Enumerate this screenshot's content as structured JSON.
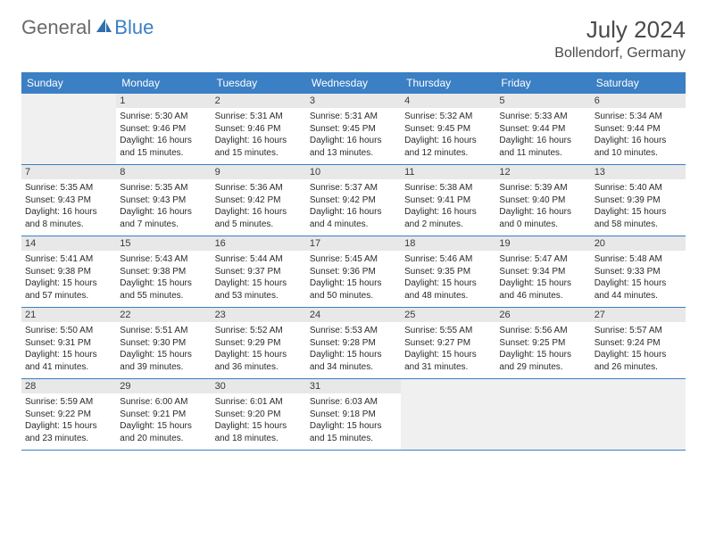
{
  "logo": {
    "general": "General",
    "blue": "Blue"
  },
  "title": "July 2024",
  "location": "Bollendorf, Germany",
  "colors": {
    "header_bg": "#3b7fc4",
    "header_text": "#ffffff",
    "daynum_bg": "#e8e8e8",
    "border": "#3b7fc4",
    "body_text": "#2a2a2a",
    "title_text": "#4a4a4a",
    "logo_gray": "#6a6a6a",
    "logo_blue": "#3b7fc4"
  },
  "typography": {
    "title_fontsize": 26,
    "location_fontsize": 16,
    "header_fontsize": 12,
    "cell_fontsize": 10
  },
  "weekdays": [
    "Sunday",
    "Monday",
    "Tuesday",
    "Wednesday",
    "Thursday",
    "Friday",
    "Saturday"
  ],
  "weeks": [
    [
      null,
      {
        "day": "1",
        "sunrise": "Sunrise: 5:30 AM",
        "sunset": "Sunset: 9:46 PM",
        "d1": "Daylight: 16 hours",
        "d2": "and 15 minutes."
      },
      {
        "day": "2",
        "sunrise": "Sunrise: 5:31 AM",
        "sunset": "Sunset: 9:46 PM",
        "d1": "Daylight: 16 hours",
        "d2": "and 15 minutes."
      },
      {
        "day": "3",
        "sunrise": "Sunrise: 5:31 AM",
        "sunset": "Sunset: 9:45 PM",
        "d1": "Daylight: 16 hours",
        "d2": "and 13 minutes."
      },
      {
        "day": "4",
        "sunrise": "Sunrise: 5:32 AM",
        "sunset": "Sunset: 9:45 PM",
        "d1": "Daylight: 16 hours",
        "d2": "and 12 minutes."
      },
      {
        "day": "5",
        "sunrise": "Sunrise: 5:33 AM",
        "sunset": "Sunset: 9:44 PM",
        "d1": "Daylight: 16 hours",
        "d2": "and 11 minutes."
      },
      {
        "day": "6",
        "sunrise": "Sunrise: 5:34 AM",
        "sunset": "Sunset: 9:44 PM",
        "d1": "Daylight: 16 hours",
        "d2": "and 10 minutes."
      }
    ],
    [
      {
        "day": "7",
        "sunrise": "Sunrise: 5:35 AM",
        "sunset": "Sunset: 9:43 PM",
        "d1": "Daylight: 16 hours",
        "d2": "and 8 minutes."
      },
      {
        "day": "8",
        "sunrise": "Sunrise: 5:35 AM",
        "sunset": "Sunset: 9:43 PM",
        "d1": "Daylight: 16 hours",
        "d2": "and 7 minutes."
      },
      {
        "day": "9",
        "sunrise": "Sunrise: 5:36 AM",
        "sunset": "Sunset: 9:42 PM",
        "d1": "Daylight: 16 hours",
        "d2": "and 5 minutes."
      },
      {
        "day": "10",
        "sunrise": "Sunrise: 5:37 AM",
        "sunset": "Sunset: 9:42 PM",
        "d1": "Daylight: 16 hours",
        "d2": "and 4 minutes."
      },
      {
        "day": "11",
        "sunrise": "Sunrise: 5:38 AM",
        "sunset": "Sunset: 9:41 PM",
        "d1": "Daylight: 16 hours",
        "d2": "and 2 minutes."
      },
      {
        "day": "12",
        "sunrise": "Sunrise: 5:39 AM",
        "sunset": "Sunset: 9:40 PM",
        "d1": "Daylight: 16 hours",
        "d2": "and 0 minutes."
      },
      {
        "day": "13",
        "sunrise": "Sunrise: 5:40 AM",
        "sunset": "Sunset: 9:39 PM",
        "d1": "Daylight: 15 hours",
        "d2": "and 58 minutes."
      }
    ],
    [
      {
        "day": "14",
        "sunrise": "Sunrise: 5:41 AM",
        "sunset": "Sunset: 9:38 PM",
        "d1": "Daylight: 15 hours",
        "d2": "and 57 minutes."
      },
      {
        "day": "15",
        "sunrise": "Sunrise: 5:43 AM",
        "sunset": "Sunset: 9:38 PM",
        "d1": "Daylight: 15 hours",
        "d2": "and 55 minutes."
      },
      {
        "day": "16",
        "sunrise": "Sunrise: 5:44 AM",
        "sunset": "Sunset: 9:37 PM",
        "d1": "Daylight: 15 hours",
        "d2": "and 53 minutes."
      },
      {
        "day": "17",
        "sunrise": "Sunrise: 5:45 AM",
        "sunset": "Sunset: 9:36 PM",
        "d1": "Daylight: 15 hours",
        "d2": "and 50 minutes."
      },
      {
        "day": "18",
        "sunrise": "Sunrise: 5:46 AM",
        "sunset": "Sunset: 9:35 PM",
        "d1": "Daylight: 15 hours",
        "d2": "and 48 minutes."
      },
      {
        "day": "19",
        "sunrise": "Sunrise: 5:47 AM",
        "sunset": "Sunset: 9:34 PM",
        "d1": "Daylight: 15 hours",
        "d2": "and 46 minutes."
      },
      {
        "day": "20",
        "sunrise": "Sunrise: 5:48 AM",
        "sunset": "Sunset: 9:33 PM",
        "d1": "Daylight: 15 hours",
        "d2": "and 44 minutes."
      }
    ],
    [
      {
        "day": "21",
        "sunrise": "Sunrise: 5:50 AM",
        "sunset": "Sunset: 9:31 PM",
        "d1": "Daylight: 15 hours",
        "d2": "and 41 minutes."
      },
      {
        "day": "22",
        "sunrise": "Sunrise: 5:51 AM",
        "sunset": "Sunset: 9:30 PM",
        "d1": "Daylight: 15 hours",
        "d2": "and 39 minutes."
      },
      {
        "day": "23",
        "sunrise": "Sunrise: 5:52 AM",
        "sunset": "Sunset: 9:29 PM",
        "d1": "Daylight: 15 hours",
        "d2": "and 36 minutes."
      },
      {
        "day": "24",
        "sunrise": "Sunrise: 5:53 AM",
        "sunset": "Sunset: 9:28 PM",
        "d1": "Daylight: 15 hours",
        "d2": "and 34 minutes."
      },
      {
        "day": "25",
        "sunrise": "Sunrise: 5:55 AM",
        "sunset": "Sunset: 9:27 PM",
        "d1": "Daylight: 15 hours",
        "d2": "and 31 minutes."
      },
      {
        "day": "26",
        "sunrise": "Sunrise: 5:56 AM",
        "sunset": "Sunset: 9:25 PM",
        "d1": "Daylight: 15 hours",
        "d2": "and 29 minutes."
      },
      {
        "day": "27",
        "sunrise": "Sunrise: 5:57 AM",
        "sunset": "Sunset: 9:24 PM",
        "d1": "Daylight: 15 hours",
        "d2": "and 26 minutes."
      }
    ],
    [
      {
        "day": "28",
        "sunrise": "Sunrise: 5:59 AM",
        "sunset": "Sunset: 9:22 PM",
        "d1": "Daylight: 15 hours",
        "d2": "and 23 minutes."
      },
      {
        "day": "29",
        "sunrise": "Sunrise: 6:00 AM",
        "sunset": "Sunset: 9:21 PM",
        "d1": "Daylight: 15 hours",
        "d2": "and 20 minutes."
      },
      {
        "day": "30",
        "sunrise": "Sunrise: 6:01 AM",
        "sunset": "Sunset: 9:20 PM",
        "d1": "Daylight: 15 hours",
        "d2": "and 18 minutes."
      },
      {
        "day": "31",
        "sunrise": "Sunrise: 6:03 AM",
        "sunset": "Sunset: 9:18 PM",
        "d1": "Daylight: 15 hours",
        "d2": "and 15 minutes."
      },
      null,
      null,
      null
    ]
  ]
}
